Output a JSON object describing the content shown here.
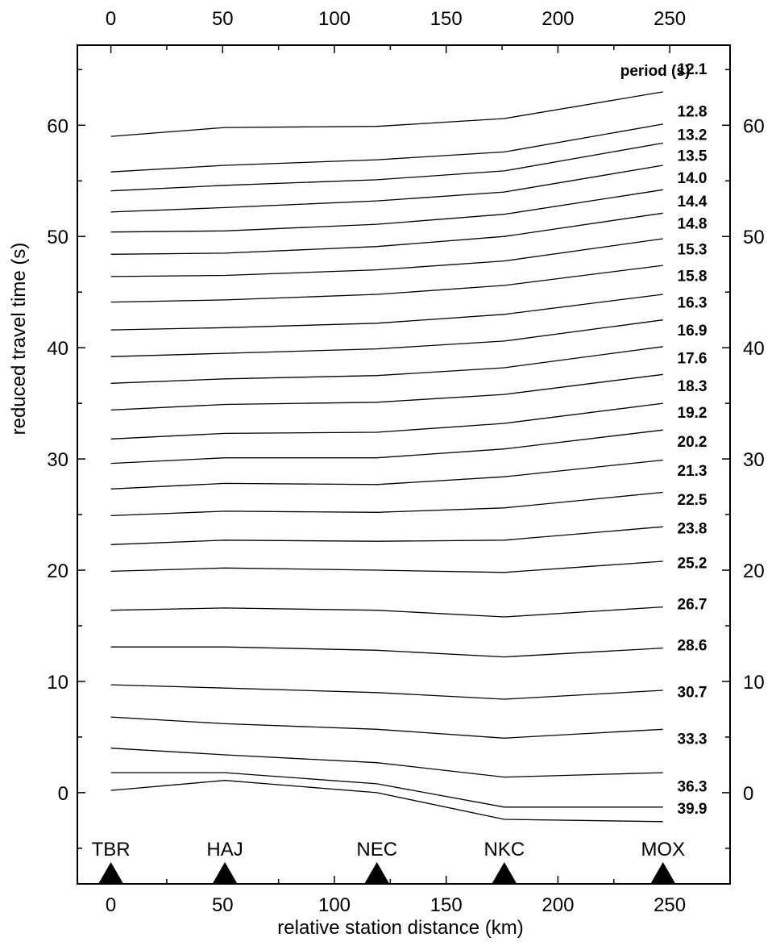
{
  "chart_data": {
    "type": "line",
    "xlabel": "relative station distance (km)",
    "ylabel": "reduced travel time (s)",
    "xlim": [
      -15,
      277
    ],
    "ylim": [
      -8.2,
      67.2
    ],
    "x_ticks": [
      0,
      50,
      100,
      150,
      200,
      250
    ],
    "y_ticks_left": [
      0,
      10,
      20,
      30,
      40,
      50,
      60
    ],
    "y_ticks_right": [
      0,
      10,
      20,
      30,
      40,
      50,
      60
    ],
    "legend_title": "period (s)",
    "stations": [
      {
        "name": "TBR",
        "x": 0
      },
      {
        "name": "HAJ",
        "x": 51
      },
      {
        "name": "NEC",
        "x": 119
      },
      {
        "name": "NKC",
        "x": 176
      },
      {
        "name": "MOX",
        "x": 247
      }
    ],
    "x": [
      0,
      51,
      119,
      176,
      247
    ],
    "series": [
      {
        "name": "12.1",
        "values": [
          59.0,
          59.8,
          59.9,
          60.6,
          63.0
        ]
      },
      {
        "name": "12.8",
        "values": [
          55.8,
          56.4,
          56.9,
          57.6,
          60.1
        ]
      },
      {
        "name": "13.2",
        "values": [
          54.1,
          54.6,
          55.1,
          55.9,
          58.4
        ]
      },
      {
        "name": "13.5",
        "values": [
          52.2,
          52.6,
          53.2,
          54.0,
          56.4
        ]
      },
      {
        "name": "14.0",
        "values": [
          50.4,
          50.5,
          51.1,
          52.0,
          54.2
        ]
      },
      {
        "name": "14.4",
        "values": [
          48.4,
          48.5,
          49.1,
          50.0,
          52.1
        ]
      },
      {
        "name": "14.8",
        "values": [
          46.4,
          46.5,
          47.0,
          47.8,
          49.8
        ]
      },
      {
        "name": "15.3",
        "values": [
          44.1,
          44.3,
          44.8,
          45.6,
          47.4
        ]
      },
      {
        "name": "15.8",
        "values": [
          41.6,
          41.8,
          42.2,
          43.0,
          44.8
        ]
      },
      {
        "name": "16.3",
        "values": [
          39.2,
          39.5,
          39.9,
          40.6,
          42.5
        ]
      },
      {
        "name": "16.9",
        "values": [
          36.8,
          37.2,
          37.5,
          38.2,
          40.1
        ]
      },
      {
        "name": "17.6",
        "values": [
          34.4,
          34.9,
          35.1,
          35.8,
          37.6
        ]
      },
      {
        "name": "18.3",
        "values": [
          31.8,
          32.3,
          32.4,
          33.2,
          35.0
        ]
      },
      {
        "name": "19.2",
        "values": [
          29.6,
          30.1,
          30.1,
          30.9,
          32.6
        ]
      },
      {
        "name": "20.2",
        "values": [
          27.3,
          27.8,
          27.7,
          28.4,
          29.9
        ]
      },
      {
        "name": "21.3",
        "values": [
          24.9,
          25.3,
          25.2,
          25.6,
          27.0
        ]
      },
      {
        "name": "22.5",
        "values": [
          22.3,
          22.7,
          22.6,
          22.7,
          23.9
        ]
      },
      {
        "name": "23.8",
        "values": [
          19.9,
          20.2,
          20.0,
          19.8,
          20.8
        ]
      },
      {
        "name": "25.2",
        "values": [
          16.4,
          16.6,
          16.4,
          15.8,
          16.7
        ]
      },
      {
        "name": "26.7",
        "values": [
          13.1,
          13.1,
          12.8,
          12.2,
          13.0
        ]
      },
      {
        "name": "28.6",
        "values": [
          9.7,
          9.4,
          9.0,
          8.4,
          9.2
        ]
      },
      {
        "name": "30.7",
        "values": [
          6.8,
          6.2,
          5.7,
          4.9,
          5.7
        ]
      },
      {
        "name": "33.3",
        "values": [
          4.0,
          3.4,
          2.7,
          1.4,
          1.8
        ]
      },
      {
        "name": "36.3",
        "values": [
          1.8,
          1.8,
          0.8,
          -1.3,
          -1.3
        ]
      },
      {
        "name": "39.9",
        "values": [
          0.2,
          1.1,
          0.0,
          -2.4,
          -2.6
        ]
      }
    ],
    "period_label_values": [
      65.1,
      61.3,
      59.2,
      57.3,
      55.3,
      53.2,
      51.2,
      48.9,
      46.5,
      44.1,
      41.6,
      39.1,
      36.6,
      34.2,
      31.6,
      29.0,
      26.4,
      23.8,
      20.7,
      17.0,
      13.3,
      9.1,
      4.9,
      0.6,
      -1.4
    ]
  }
}
